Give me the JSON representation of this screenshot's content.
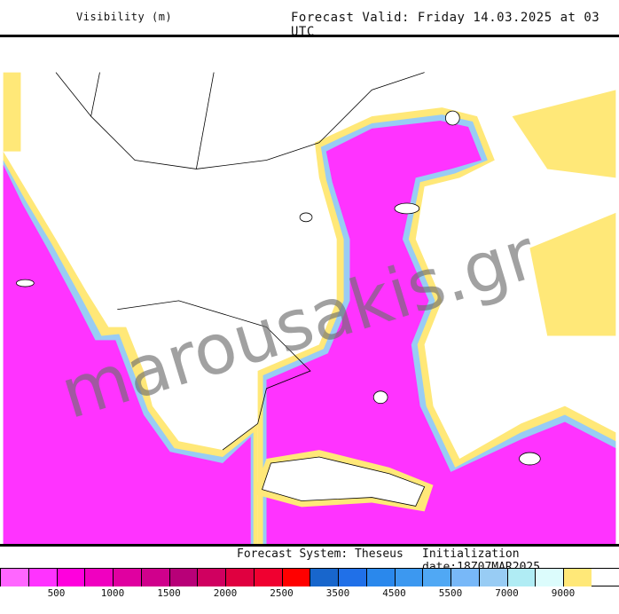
{
  "header": {
    "title": "Visibility (m)",
    "valid": "Forecast Valid:  Friday 14.03.2025 at 03 UTC"
  },
  "footer": {
    "system": "Forecast System: Theseus",
    "init": "Initialization date:18Z07MAR2025"
  },
  "watermark": "marousakis.gr",
  "legend": {
    "colors": [
      "#ff66ff",
      "#ff33ff",
      "#ff00dd",
      "#f000c0",
      "#e000a0",
      "#d0008c",
      "#b80078",
      "#d00060",
      "#e00040",
      "#f00030",
      "#ff0000",
      "#1866cc",
      "#2070e8",
      "#2a88ec",
      "#3c98f0",
      "#50a8f4",
      "#78b8f8",
      "#98ccf4",
      "#b0ecf4",
      "#dcfcfc",
      "#ffe878"
    ],
    "labels": [
      "500",
      "1000",
      "1500",
      "2000",
      "2500",
      "3500",
      "4500",
      "5500",
      "7000",
      "9000"
    ]
  },
  "colors": {
    "sea_low_vis": "#ff33ff",
    "land": "#ffffff",
    "fringe_blue": "#98ccf4",
    "fringe_cyan": "#dcfcfc",
    "fringe_yellow": "#ffe878"
  }
}
